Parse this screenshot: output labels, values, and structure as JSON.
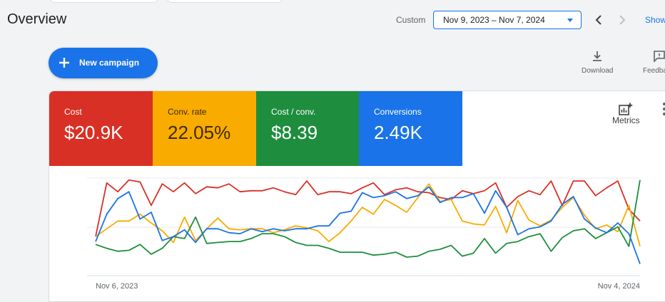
{
  "header": {
    "title": "Overview",
    "date_range_label": "Custom",
    "date_range_value": "Nov 9, 2023 – Nov 7, 2024",
    "show_link": "Show"
  },
  "actions": {
    "new_campaign": "New campaign",
    "download": "Download",
    "feedback": "Feedback"
  },
  "metrics_button": "Metrics",
  "tiles": [
    {
      "label": "Cost",
      "value": "$20.9K",
      "color": "#d93025"
    },
    {
      "label": "Conv. rate",
      "value": "22.05%",
      "color": "#f9ab00"
    },
    {
      "label": "Cost / conv.",
      "value": "$8.39",
      "color": "#1e8e3e"
    },
    {
      "label": "Conversions",
      "value": "2.49K",
      "color": "#1a73e8"
    }
  ],
  "chart_data": {
    "type": "line",
    "x_start_label": "Nov 6, 2023",
    "x_end_label": "Nov 4, 2024",
    "ylim": [
      0,
      100
    ],
    "grid": true,
    "series": [
      {
        "color": "#d93025",
        "values": [
          40,
          95,
          86,
          98,
          96,
          72,
          94,
          86,
          95,
          84,
          91,
          90,
          94,
          86,
          87,
          87,
          90,
          86,
          83,
          97,
          83,
          86,
          86,
          84,
          90,
          95,
          83,
          88,
          90,
          86,
          85,
          80,
          78,
          87,
          84,
          87,
          95,
          70,
          81,
          87,
          83,
          97,
          72,
          97,
          97,
          82,
          90,
          97,
          68,
          56
        ]
      },
      {
        "color": "#f9ab00",
        "values": [
          40,
          48,
          56,
          56,
          63,
          54,
          46,
          34,
          60,
          36,
          48,
          59,
          48,
          47,
          48,
          48,
          44,
          47,
          51,
          49,
          46,
          35,
          44,
          56,
          70,
          63,
          78,
          72,
          65,
          80,
          94,
          76,
          78,
          56,
          53,
          52,
          71,
          44,
          77,
          57,
          51,
          57,
          70,
          80,
          62,
          48,
          52,
          45,
          72,
          30
        ]
      },
      {
        "color": "#1e8e3e",
        "values": [
          32,
          28,
          25,
          26,
          32,
          22,
          28,
          40,
          38,
          60,
          33,
          34,
          35,
          35,
          38,
          43,
          43,
          40,
          34,
          31,
          31,
          28,
          24,
          24,
          24,
          21,
          22,
          24,
          19,
          20,
          25,
          27,
          31,
          20,
          23,
          38,
          23,
          33,
          35,
          40,
          43,
          25,
          39,
          46,
          48,
          38,
          44,
          50,
          30,
          98
        ]
      },
      {
        "color": "#1a73e8",
        "values": [
          35,
          63,
          79,
          86,
          58,
          65,
          36,
          40,
          47,
          34,
          48,
          48,
          44,
          43,
          48,
          45,
          48,
          46,
          48,
          48,
          51,
          51,
          64,
          66,
          85,
          80,
          82,
          86,
          79,
          82,
          91,
          75,
          80,
          80,
          84,
          64,
          87,
          70,
          42,
          48,
          50,
          56,
          73,
          81,
          58,
          49,
          44,
          54,
          43,
          12
        ]
      }
    ]
  }
}
